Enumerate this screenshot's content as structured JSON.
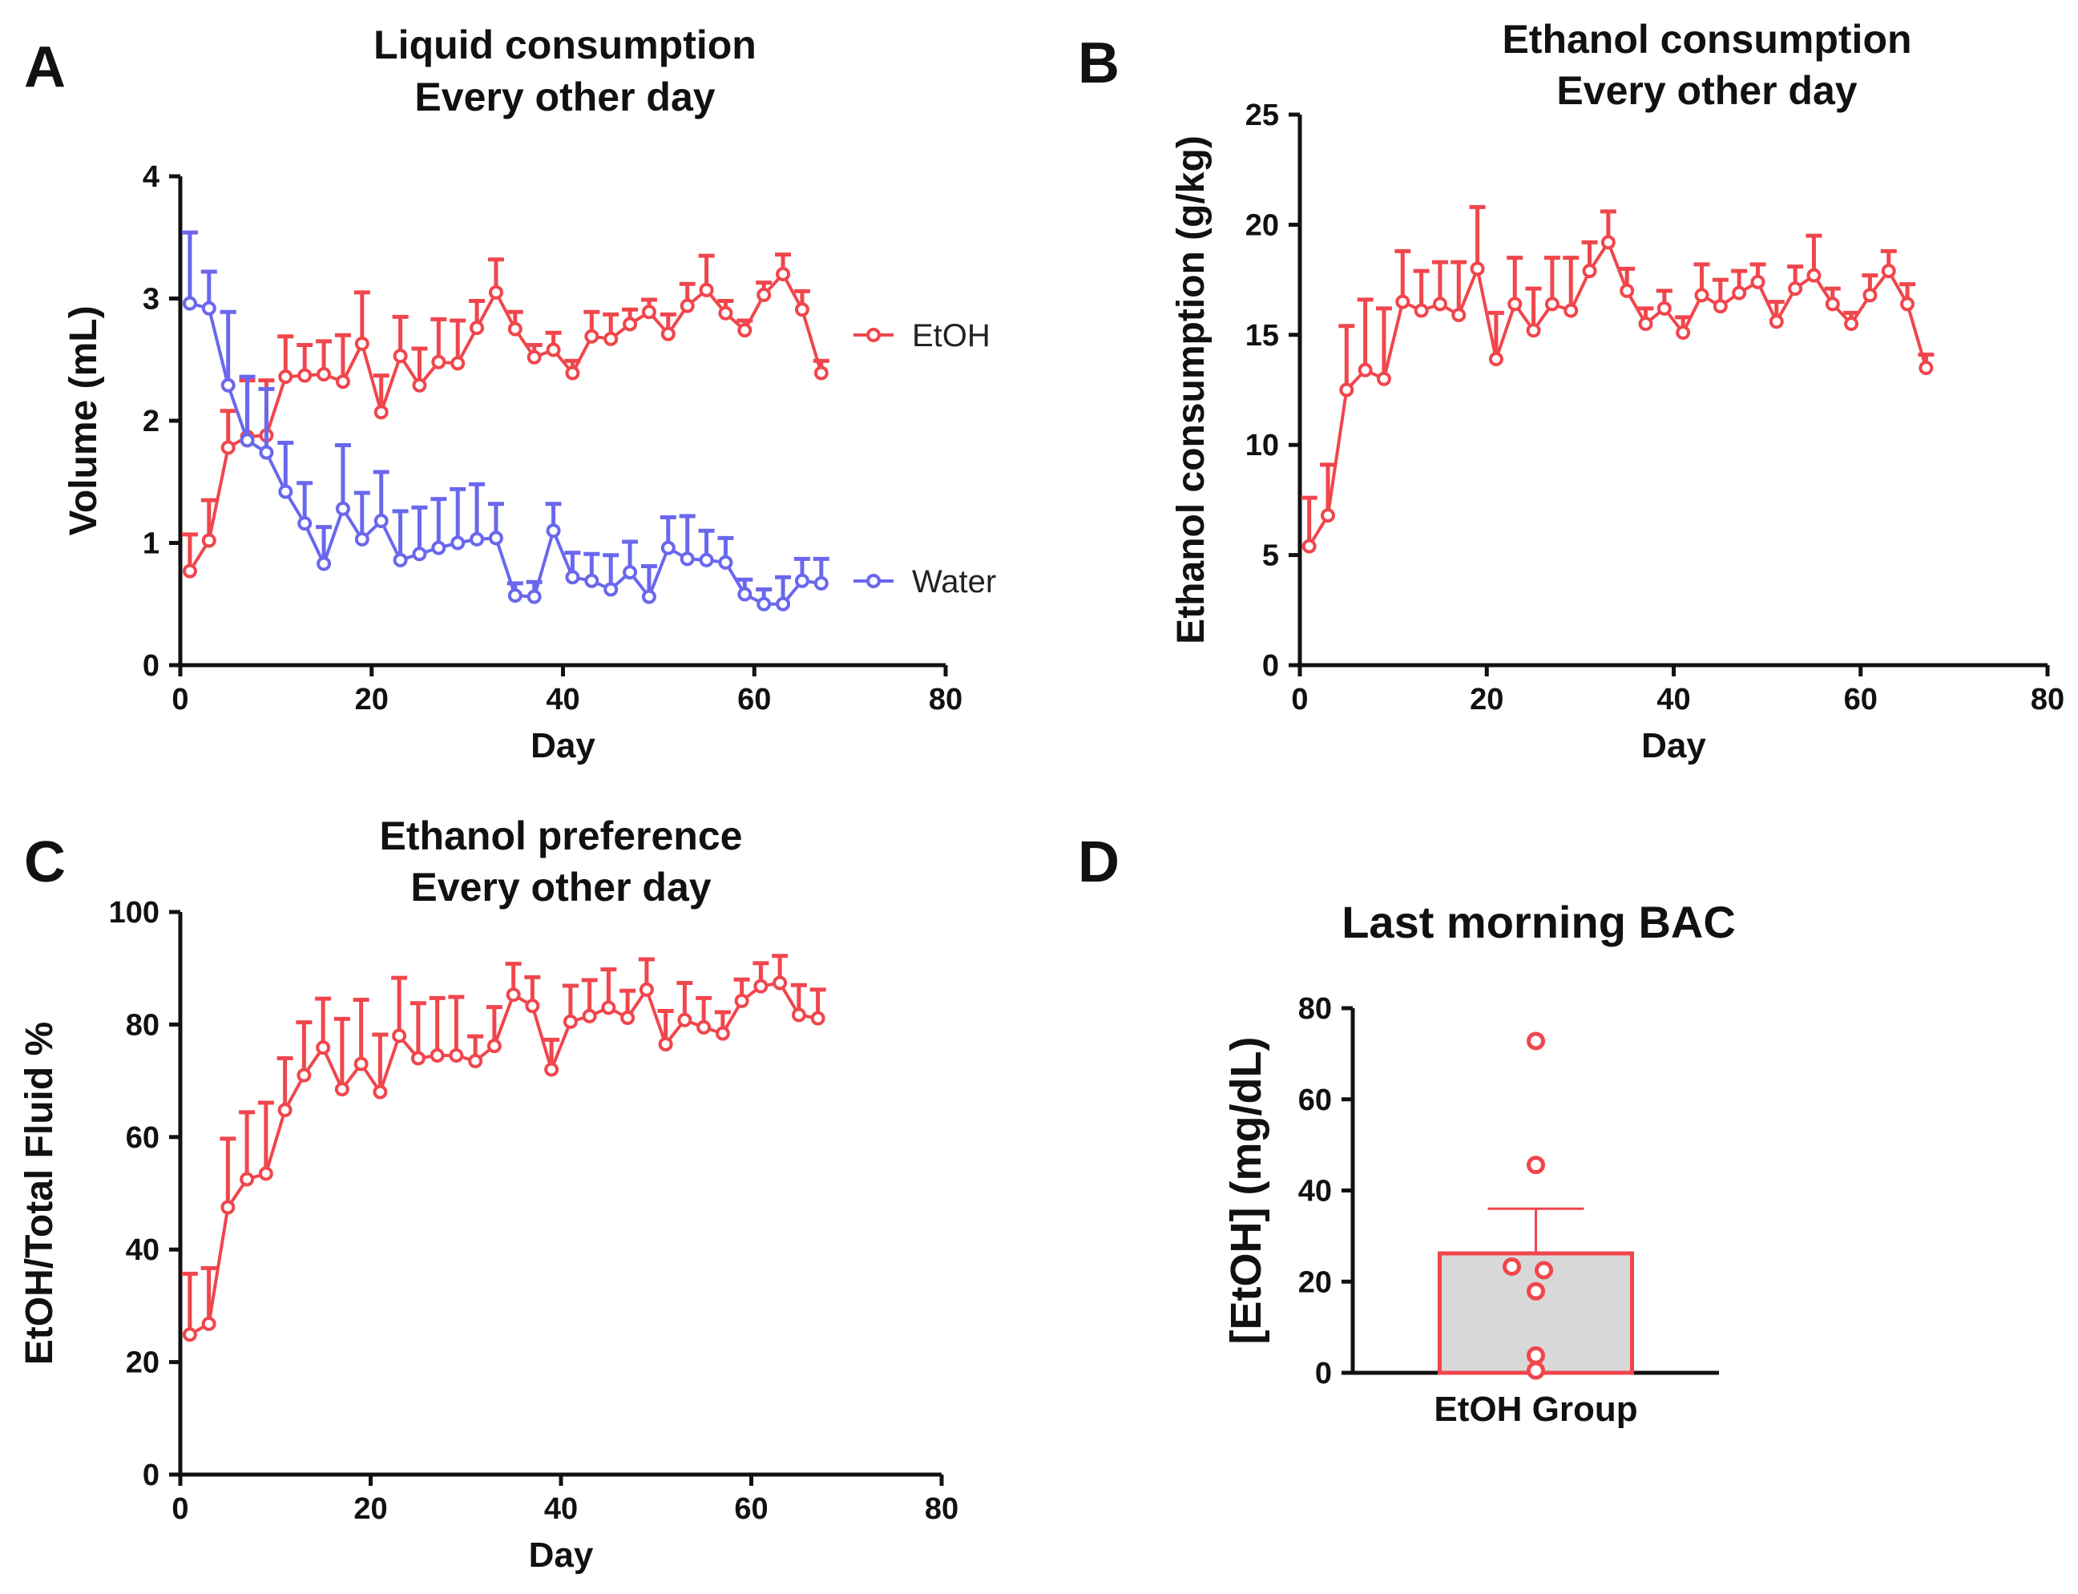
{
  "panels": {
    "a": {
      "label": "A",
      "title_line1": "Liquid consumption",
      "title_line2": "Every other day"
    },
    "b": {
      "label": "B",
      "title_line1": "Ethanol consumption",
      "title_line2": "Every other day"
    },
    "c": {
      "label": "C",
      "title_line1": "Ethanol preference",
      "title_line2": "Every other day"
    },
    "d": {
      "label": "D",
      "title_line1": "Last morning BAC"
    }
  },
  "colors": {
    "etoh": "#f0464c",
    "water": "#6a67ee",
    "bar_fill": "#d8d8d8",
    "axis": "#111111"
  },
  "chart_data": [
    {
      "id": "A",
      "type": "line",
      "title": "Liquid consumption Every other day",
      "xlabel": "Day",
      "ylabel": "Volume (mL)",
      "xlim": [
        0,
        80
      ],
      "ylim": [
        0,
        4
      ],
      "xticks": [
        0,
        20,
        40,
        60,
        80
      ],
      "yticks": [
        0,
        1,
        2,
        3,
        4
      ],
      "legend": "right",
      "x": [
        1,
        3,
        5,
        7,
        9,
        11,
        13,
        15,
        17,
        19,
        21,
        23,
        25,
        27,
        29,
        31,
        33,
        35,
        37,
        39,
        41,
        43,
        45,
        47,
        49,
        51,
        53,
        55,
        57,
        59,
        61,
        63,
        65,
        67
      ],
      "series": [
        {
          "name": "EtOH",
          "color": "#f0464c",
          "values": [
            0.77,
            1.02,
            1.78,
            1.87,
            1.88,
            2.36,
            2.37,
            2.38,
            2.32,
            2.63,
            2.07,
            2.53,
            2.29,
            2.48,
            2.47,
            2.76,
            3.05,
            2.75,
            2.52,
            2.58,
            2.39,
            2.69,
            2.67,
            2.79,
            2.89,
            2.71,
            2.94,
            3.07,
            2.88,
            2.74,
            3.03,
            3.2,
            2.91,
            2.39
          ],
          "errors": [
            0.3,
            0.33,
            0.3,
            0.46,
            0.45,
            0.33,
            0.25,
            0.27,
            0.38,
            0.42,
            0.3,
            0.32,
            0.3,
            0.35,
            0.35,
            0.22,
            0.27,
            0.14,
            0.1,
            0.14,
            0.1,
            0.2,
            0.2,
            0.12,
            0.1,
            0.16,
            0.18,
            0.28,
            0.1,
            0.08,
            0.1,
            0.16,
            0.15,
            0.1
          ]
        },
        {
          "name": "Water",
          "color": "#6a67ee",
          "values": [
            2.96,
            2.92,
            2.29,
            1.84,
            1.74,
            1.42,
            1.16,
            0.83,
            1.28,
            1.03,
            1.18,
            0.86,
            0.91,
            0.96,
            1.0,
            1.03,
            1.04,
            0.57,
            0.56,
            1.1,
            0.72,
            0.69,
            0.62,
            0.76,
            0.56,
            0.96,
            0.87,
            0.86,
            0.84,
            0.58,
            0.5,
            0.5,
            0.69,
            0.67
          ],
          "errors": [
            0.58,
            0.3,
            0.6,
            0.52,
            0.52,
            0.4,
            0.33,
            0.3,
            0.52,
            0.38,
            0.4,
            0.4,
            0.38,
            0.4,
            0.44,
            0.45,
            0.28,
            0.1,
            0.12,
            0.22,
            0.2,
            0.22,
            0.28,
            0.25,
            0.25,
            0.25,
            0.35,
            0.24,
            0.2,
            0.12,
            0.12,
            0.22,
            0.18,
            0.2
          ]
        }
      ]
    },
    {
      "id": "B",
      "type": "line",
      "title": "Ethanol consumption Every other day",
      "xlabel": "Day",
      "ylabel": "Ethanol consumption (g/kg)",
      "xlim": [
        0,
        80
      ],
      "ylim": [
        0,
        25
      ],
      "xticks": [
        0,
        20,
        40,
        60,
        80
      ],
      "yticks": [
        0,
        5,
        10,
        15,
        20,
        25
      ],
      "x": [
        1,
        3,
        5,
        7,
        9,
        11,
        13,
        15,
        17,
        19,
        21,
        23,
        25,
        27,
        29,
        31,
        33,
        35,
        37,
        39,
        41,
        43,
        45,
        47,
        49,
        51,
        53,
        55,
        57,
        59,
        61,
        63,
        65,
        67
      ],
      "series": [
        {
          "name": "EtOH",
          "color": "#f0464c",
          "values": [
            5.4,
            6.8,
            12.5,
            13.4,
            13.0,
            16.5,
            16.1,
            16.4,
            15.9,
            18.0,
            13.9,
            16.4,
            15.2,
            16.4,
            16.1,
            17.9,
            19.2,
            17.0,
            15.5,
            16.2,
            15.1,
            16.8,
            16.3,
            16.9,
            17.4,
            15.6,
            17.1,
            17.7,
            16.4,
            15.5,
            16.8,
            17.9,
            16.4,
            13.5
          ],
          "errors": [
            2.2,
            2.3,
            2.9,
            3.2,
            3.2,
            2.3,
            1.8,
            1.9,
            2.4,
            2.8,
            2.1,
            2.1,
            1.9,
            2.1,
            2.4,
            1.3,
            1.4,
            1.0,
            0.7,
            0.8,
            0.7,
            1.4,
            1.2,
            1.0,
            0.8,
            0.9,
            1.0,
            1.8,
            0.7,
            0.5,
            0.9,
            0.9,
            0.9,
            0.6
          ]
        }
      ]
    },
    {
      "id": "C",
      "type": "line",
      "title": "Ethanol preference Every other day",
      "xlabel": "Day",
      "ylabel": "EtOH/Total Fluid %",
      "xlim": [
        0,
        80
      ],
      "ylim": [
        0,
        100
      ],
      "xticks": [
        0,
        20,
        40,
        60,
        80
      ],
      "yticks": [
        0,
        20,
        40,
        60,
        80,
        100
      ],
      "x": [
        1,
        3,
        5,
        7,
        9,
        11,
        13,
        15,
        17,
        19,
        21,
        23,
        25,
        27,
        29,
        31,
        33,
        35,
        37,
        39,
        41,
        43,
        45,
        47,
        49,
        51,
        53,
        55,
        57,
        59,
        61,
        63,
        65,
        67
      ],
      "series": [
        {
          "name": "EtOH",
          "color": "#f0464c",
          "values": [
            24.9,
            26.8,
            47.5,
            52.5,
            53.5,
            64.8,
            71.0,
            75.9,
            68.5,
            73.0,
            68.0,
            78.0,
            74.0,
            74.5,
            74.5,
            73.5,
            76.2,
            85.3,
            83.3,
            72.0,
            80.5,
            81.5,
            83.0,
            81.2,
            86.2,
            76.5,
            80.8,
            79.5,
            78.4,
            84.2,
            86.8,
            87.4,
            81.7,
            81.1
          ],
          "errors": [
            10.8,
            9.9,
            12.2,
            11.9,
            12.6,
            9.2,
            9.4,
            8.7,
            12.5,
            11.4,
            10.2,
            10.3,
            9.8,
            10.2,
            10.4,
            4.4,
            6.9,
            5.5,
            5.1,
            5.3,
            6.4,
            6.4,
            6.8,
            4.8,
            5.4,
            5.9,
            6.6,
            5.2,
            3.8,
            3.8,
            4.1,
            4.8,
            5.3,
            5.1
          ]
        }
      ]
    },
    {
      "id": "D",
      "type": "bar",
      "title": "Last morning BAC",
      "xlabel": "",
      "ylabel": "[EtOH] (mg/dL)",
      "ylim": [
        0,
        80
      ],
      "yticks": [
        0,
        20,
        40,
        60,
        80
      ],
      "categories": [
        "EtOH Group"
      ],
      "values": [
        26.2
      ],
      "errors": [
        9.8
      ],
      "points": [
        72.8,
        45.6,
        23.3,
        22.5,
        17.9,
        3.8,
        0.5
      ]
    }
  ]
}
